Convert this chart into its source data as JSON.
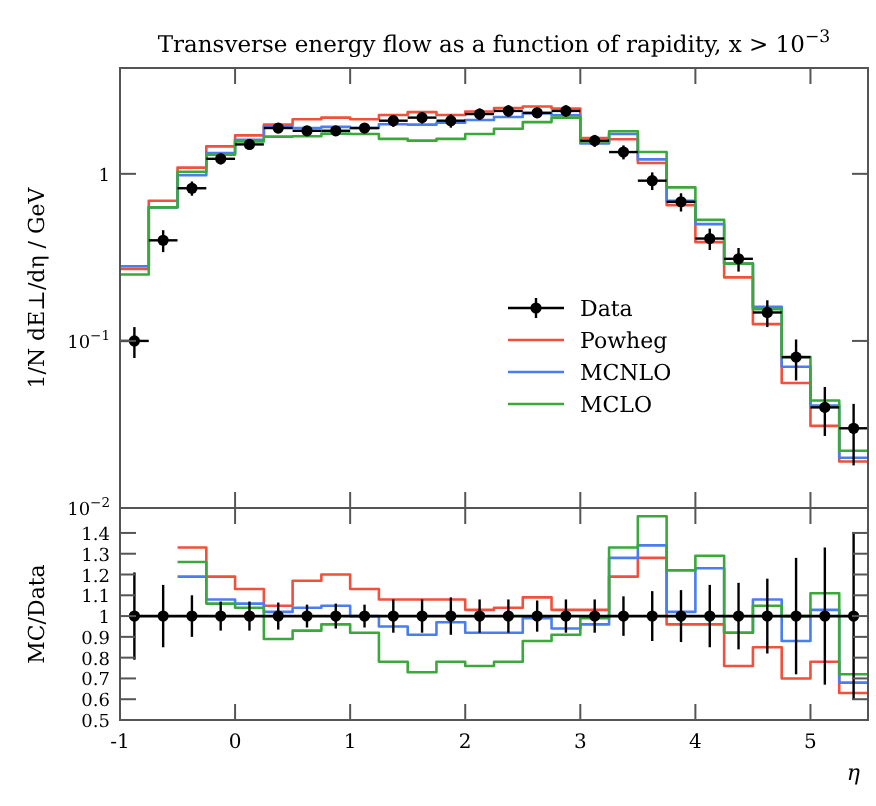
{
  "chart_data": [
    {
      "type": "histogram",
      "title": "Transverse energy flow as a function of rapidity, x > 10$^{−3}$",
      "ylabel": "1/N dE⊥/dη / GeV",
      "bins": [
        -1,
        -0.75,
        -0.5,
        -0.25,
        0,
        0.25,
        0.5,
        0.75,
        1,
        1.25,
        1.5,
        1.75,
        2,
        2.25,
        2.5,
        2.75,
        3,
        3.25,
        3.5,
        3.75,
        4,
        4.25,
        4.5,
        4.75,
        5,
        5.25,
        5.5
      ],
      "x": [
        -0.875,
        -0.625,
        -0.375,
        -0.125,
        0.125,
        0.375,
        0.625,
        0.875,
        1.125,
        1.375,
        1.625,
        1.875,
        2.125,
        2.375,
        2.625,
        2.875,
        3.125,
        3.375,
        3.625,
        3.875,
        4.125,
        4.375,
        4.625,
        4.875,
        5.125,
        5.375
      ],
      "xlim": [
        -1,
        5.5
      ],
      "xticks": [
        {
          "value": -1,
          "label": null
        },
        {
          "value": 0,
          "label": null
        },
        {
          "value": 1,
          "label": null
        },
        {
          "value": 2,
          "label": null
        },
        {
          "value": 3,
          "label": null
        },
        {
          "value": 4,
          "label": null
        },
        {
          "value": 5,
          "label": null
        }
      ],
      "ylim": [
        0.01,
        4.3
      ],
      "yticks": [
        {
          "value": 0.01,
          "label": "10$^{−2}$"
        },
        {
          "value": 0.1,
          "label": "10$^{−1}$"
        },
        1
      ],
      "log": true,
      "tick_labels": "y",
      "legend": "right",
      "series": [
        {
          "name": "Data",
          "type": "scatter",
          "marker": "circle",
          "color": "#000000",
          "values": [
            0.1,
            0.4,
            0.82,
            1.23,
            1.5,
            1.88,
            1.81,
            1.81,
            1.88,
            2.08,
            2.17,
            2.08,
            2.28,
            2.38,
            2.32,
            2.38,
            1.58,
            1.35,
            0.91,
            0.68,
            0.41,
            0.31,
            0.148,
            0.08,
            0.04,
            0.03
          ],
          "errors": [
            0.021,
            0.06,
            0.08,
            0.09,
            0.1,
            0.12,
            0.1,
            0.11,
            0.1,
            0.17,
            0.17,
            0.19,
            0.18,
            0.19,
            0.17,
            0.19,
            0.13,
            0.13,
            0.11,
            0.085,
            0.06,
            0.05,
            0.027,
            0.022,
            0.013,
            0.012
          ],
          "xerrors": [
            0.125,
            0.125,
            0.125,
            0.125,
            0.125,
            0.125,
            0.125,
            0.125,
            0.125,
            0.125,
            0.125,
            0.125,
            0.125,
            0.125,
            0.125,
            0.125,
            0.125,
            0.125,
            0.125,
            0.125,
            0.125,
            0.125,
            0.125,
            0.125,
            0.125,
            0.125
          ]
        },
        {
          "name": "Powheg",
          "color": "#f0503c",
          "values": [
            0.27,
            0.69,
            1.09,
            1.46,
            1.7,
            1.97,
            2.12,
            2.17,
            2.12,
            2.25,
            2.34,
            2.25,
            2.36,
            2.48,
            2.53,
            2.46,
            1.64,
            1.61,
            1.16,
            0.65,
            0.39,
            0.24,
            0.126,
            0.056,
            0.031,
            0.019
          ]
        },
        {
          "name": "MCNLO",
          "color": "#4a7ef0",
          "values": [
            0.28,
            0.63,
            0.98,
            1.33,
            1.6,
            1.92,
            1.88,
            1.91,
            1.88,
            1.98,
            1.97,
            2.02,
            2.1,
            2.19,
            2.3,
            2.24,
            1.52,
            1.73,
            1.22,
            0.69,
            0.5,
            0.29,
            0.16,
            0.07,
            0.041,
            0.02
          ]
        },
        {
          "name": "MCLO",
          "color": "#3aa83a",
          "values": [
            0.25,
            0.63,
            1.03,
            1.3,
            1.56,
            1.67,
            1.68,
            1.74,
            1.73,
            1.62,
            1.58,
            1.62,
            1.73,
            1.86,
            2.04,
            2.17,
            1.56,
            1.8,
            1.35,
            0.83,
            0.53,
            0.29,
            0.155,
            0.08,
            0.044,
            0.022
          ]
        }
      ]
    },
    {
      "type": "histogram",
      "xlabel": "η",
      "ylabel": "MC/Data",
      "x": [
        -0.875,
        -0.625,
        -0.375,
        -0.125,
        0.125,
        0.375,
        0.625,
        0.875,
        1.125,
        1.375,
        1.625,
        1.875,
        2.125,
        2.375,
        2.625,
        2.875,
        3.125,
        3.375,
        3.625,
        3.875,
        4.125,
        4.375,
        4.625,
        4.875,
        5.125,
        5.375
      ],
      "xlim": [
        -1,
        5.5
      ],
      "xticks": [
        -1,
        0,
        1,
        2,
        3,
        4,
        5
      ],
      "ylim": [
        0.5,
        1.52
      ],
      "yticks": [
        0.5,
        0.6,
        0.7,
        0.8,
        0.9,
        1,
        1.1,
        1.2,
        1.3,
        1.4
      ],
      "series": [
        {
          "color": "#f0503c",
          "bins": [
            -0.5,
            -0.25,
            0,
            0.25,
            0.5,
            0.75,
            1,
            1.25,
            1.5,
            1.75,
            2,
            2.25,
            2.5,
            2.75,
            3,
            3.25,
            3.5,
            3.75,
            4,
            4.25,
            4.5,
            4.75,
            5,
            5.25,
            5.5
          ],
          "values": [
            1.33,
            1.19,
            1.13,
            1.05,
            1.17,
            1.2,
            1.13,
            1.08,
            1.08,
            1.08,
            1.03,
            1.04,
            1.09,
            1.03,
            1.03,
            1.19,
            1.28,
            0.96,
            0.96,
            0.76,
            0.85,
            0.7,
            0.78,
            0.63
          ]
        },
        {
          "color": "#4a7ef0",
          "bins": [
            -0.5,
            -0.25,
            0,
            0.25,
            0.5,
            0.75,
            1,
            1.25,
            1.5,
            1.75,
            2,
            2.25,
            2.5,
            2.75,
            3,
            3.25,
            3.5,
            3.75,
            4,
            4.25,
            4.5,
            4.75,
            5,
            5.25,
            5.5
          ],
          "values": [
            1.19,
            1.08,
            1.06,
            1.02,
            1.04,
            1.05,
            1.0,
            0.95,
            0.91,
            0.97,
            0.92,
            0.92,
            0.99,
            0.94,
            0.96,
            1.28,
            1.34,
            1.02,
            1.23,
            0.92,
            1.08,
            0.88,
            1.03,
            0.68
          ]
        },
        {
          "color": "#3aa83a",
          "bins": [
            -0.5,
            -0.25,
            0,
            0.25,
            0.5,
            0.75,
            1,
            1.25,
            1.5,
            1.75,
            2,
            2.25,
            2.5,
            2.75,
            3,
            3.25,
            3.5,
            3.75,
            4,
            4.25,
            4.5,
            4.75,
            5,
            5.25,
            5.5
          ],
          "values": [
            1.26,
            1.06,
            1.04,
            0.89,
            0.93,
            0.96,
            0.92,
            0.78,
            0.73,
            0.78,
            0.76,
            0.78,
            0.88,
            0.91,
            0.99,
            1.33,
            1.48,
            1.22,
            1.29,
            0.92,
            1.05,
            1.0,
            1.11,
            0.72
          ]
        },
        {
          "type": "line",
          "marker": "circle",
          "color": "#000000",
          "values": [
            1,
            1,
            1,
            1,
            1,
            1,
            1,
            1,
            1,
            1,
            1,
            1,
            1,
            1,
            1,
            1,
            1,
            1,
            1,
            1,
            1,
            1,
            1,
            1,
            1,
            1
          ],
          "errors": [
            0.21,
            0.15,
            0.1,
            0.07,
            0.07,
            0.065,
            0.055,
            0.06,
            0.055,
            0.08,
            0.08,
            0.09,
            0.08,
            0.08,
            0.075,
            0.08,
            0.08,
            0.095,
            0.12,
            0.125,
            0.15,
            0.16,
            0.18,
            0.28,
            0.33,
            0.4
          ]
        }
      ]
    }
  ]
}
